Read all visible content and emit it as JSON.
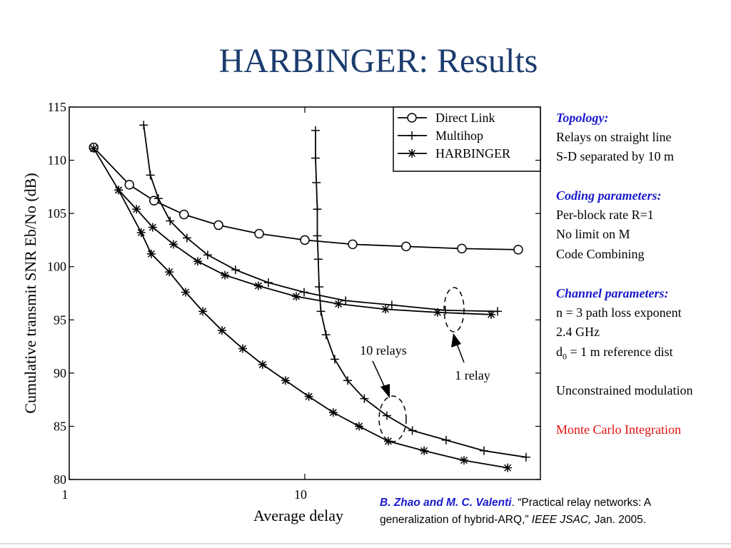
{
  "slide_title": "HARBINGER: Results",
  "chart_data": {
    "type": "line",
    "xlabel": "Average delay",
    "ylabel": "Cumulative transmit SNR Eb/No (dB)",
    "xscale": "log",
    "xlim": [
      1,
      100
    ],
    "xticks": [
      1,
      10
    ],
    "ylim": [
      80,
      115
    ],
    "yticks": [
      80,
      85,
      90,
      95,
      100,
      105,
      110,
      115
    ],
    "legend": "upper right",
    "annotations": [
      "10 relays",
      "1 relay"
    ],
    "series": [
      {
        "name": "Direct Link",
        "color": "#000000",
        "marker": "circle",
        "x": [
          1.27,
          1.8,
          2.29,
          3.07,
          4.3,
          6.4,
          10,
          15.96,
          26.9,
          46.4,
          80.5
        ],
        "values": [
          111.2,
          107.7,
          106.2,
          104.9,
          103.9,
          103.1,
          102.5,
          102.1,
          101.9,
          101.7,
          101.6
        ]
      },
      {
        "name": "Multihop",
        "color": "#000000",
        "marker": "plus",
        "x": [
          2.07,
          2.21,
          2.39,
          2.68,
          3.16,
          3.87,
          5.08,
          7.0,
          9.93,
          14.9,
          23.4,
          39.5,
          65.8
        ],
        "values": [
          113.3,
          108.6,
          106.4,
          104.3,
          102.7,
          101.1,
          99.7,
          98.5,
          97.6,
          96.8,
          96.4,
          95.9,
          95.8
        ]
      },
      {
        "name": "HARBINGER",
        "color": "#000000",
        "marker": "star",
        "x": [
          1.27,
          1.62,
          1.93,
          2.26,
          2.77,
          3.51,
          4.58,
          6.35,
          9.2,
          13.9,
          22.0,
          36.6,
          61.8
        ],
        "values": [
          111.1,
          107.2,
          105.4,
          103.7,
          102.1,
          100.5,
          99.2,
          98.2,
          97.2,
          96.5,
          96.0,
          95.7,
          95.5
        ]
      },
      {
        "name": "Multihop",
        "color": "#000000",
        "marker": "plus",
        "x": [
          11.1,
          11.1,
          11.2,
          11.3,
          11.3,
          11.4,
          11.5,
          11.7,
          12.3,
          13.4,
          15.2,
          17.9,
          22.3,
          28.6,
          39.8,
          57.6,
          86.9
        ],
        "values": [
          112.8,
          110.2,
          107.9,
          105.4,
          102.9,
          100.7,
          98.1,
          95.8,
          93.6,
          91.3,
          89.3,
          87.6,
          86.0,
          84.6,
          83.7,
          82.7,
          82.1
        ]
      },
      {
        "name": "HARBINGER",
        "color": "#000000",
        "marker": "star",
        "x": [
          1.62,
          2.02,
          2.23,
          2.66,
          3.12,
          3.69,
          4.45,
          5.45,
          6.62,
          8.28,
          10.4,
          13.2,
          17.0,
          22.6,
          32.1,
          47.4,
          72.6
        ],
        "values": [
          107.2,
          103.2,
          101.2,
          99.5,
          97.6,
          95.8,
          94.0,
          92.3,
          90.8,
          89.3,
          87.8,
          86.3,
          85.0,
          83.6,
          82.7,
          81.8,
          81.1
        ]
      }
    ]
  },
  "notes": {
    "topology": {
      "heading": "Topology:",
      "lines": [
        "Relays on straight line",
        "S-D separated by 10 m"
      ]
    },
    "coding": {
      "heading": "Coding parameters:",
      "lines": [
        "Per-block rate R=1",
        "No limit on M",
        "Code Combining"
      ]
    },
    "channel": {
      "heading": "Channel parameters:",
      "lines": [
        "n = 3 path loss exponent",
        "2.4 GHz"
      ],
      "ref_dist": {
        "base": "d",
        "sub": "0",
        "rest": " = 1 m reference dist"
      }
    },
    "modulation": "Unconstrained modulation",
    "method": "Monte Carlo Integration"
  },
  "citation": {
    "authors": "B. Zhao and M. C. Valenti",
    "title": ". “Practical relay networks: A generalization of hybrid-ARQ,” ",
    "journal": "IEEE JSAC,",
    "date": " Jan. 2005."
  }
}
